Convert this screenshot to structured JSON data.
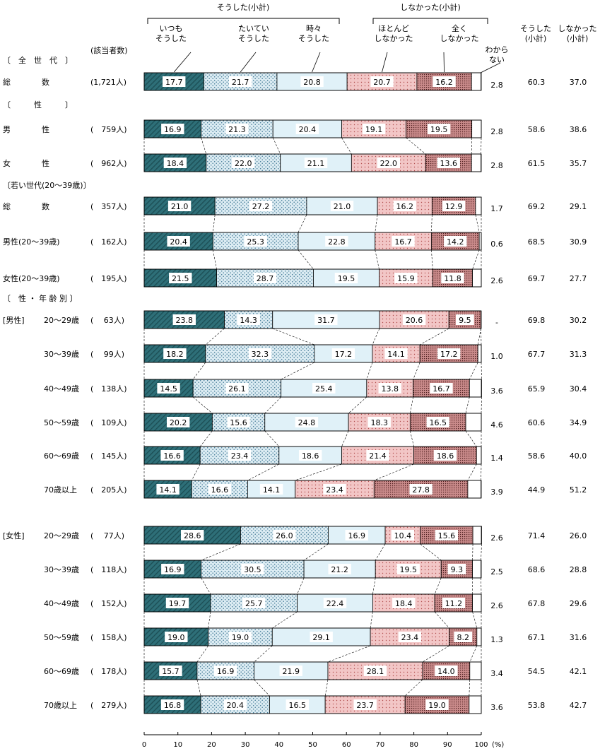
{
  "chart_data": {
    "type": "bar",
    "subtype": "stacked-horizontal-100",
    "unit_label": "(%)",
    "count_header": "(該当者数)",
    "group_headers": {
      "did": "そうした(小計)",
      "did_not": "しなかった(小計)"
    },
    "series": [
      {
        "name": "いつも\nそうした",
        "key": "always"
      },
      {
        "name": "たいてい\nそうした",
        "key": "usually"
      },
      {
        "name": "時々\nそうした",
        "key": "sometimes"
      },
      {
        "name": "ほとんど\nしなかった",
        "key": "rarely"
      },
      {
        "name": "全く\nしなかった",
        "key": "never"
      },
      {
        "name": "わから\nない",
        "key": "dontknow"
      }
    ],
    "subtotal_headers": [
      "そうした\n(小計)",
      "しなかった\n(小計)"
    ],
    "x_ticks": [
      "0",
      "10",
      "20",
      "30",
      "40",
      "50",
      "60",
      "70",
      "80",
      "90",
      "100"
    ],
    "xlim": [
      0,
      100
    ],
    "section_labels": [
      {
        "before": 0,
        "text": "〔　全　世　代　〕"
      },
      {
        "before": 1,
        "text": "〔　　　性　　　〕"
      },
      {
        "before": 3,
        "text": "〔若い世代(20〜39歳)〕"
      },
      {
        "before": 6,
        "text": "〔　性 ・ 年 齢 別 〕"
      }
    ],
    "rows": [
      {
        "label": "総　　　　数",
        "group": "",
        "count": "(1,721人)",
        "values": [
          17.7,
          21.7,
          20.8,
          20.7,
          16.2,
          2.8
        ],
        "did": "60.3",
        "did_not": "37.0"
      },
      {
        "label": "男　　　　性",
        "group": "",
        "count": "(　759人)",
        "values": [
          16.9,
          21.3,
          20.4,
          19.1,
          19.5,
          2.8
        ],
        "did": "58.6",
        "did_not": "38.6"
      },
      {
        "label": "女　　　　性",
        "group": "",
        "count": "(　962人)",
        "values": [
          18.4,
          22.0,
          21.1,
          22.0,
          13.6,
          2.8
        ],
        "did": "61.5",
        "did_not": "35.7"
      },
      {
        "label": "総　　　　数",
        "group": "",
        "count": "(　357人)",
        "values": [
          21.0,
          27.2,
          21.0,
          16.2,
          12.9,
          1.7
        ],
        "did": "69.2",
        "did_not": "29.1"
      },
      {
        "label": "男性(20〜39歳)",
        "group": "",
        "count": "(　162人)",
        "values": [
          20.4,
          25.3,
          22.8,
          16.7,
          14.2,
          0.6
        ],
        "did": "68.5",
        "did_not": "30.9"
      },
      {
        "label": "女性(20〜39歳)",
        "group": "",
        "count": "(　195人)",
        "values": [
          21.5,
          28.7,
          19.5,
          15.9,
          11.8,
          2.6
        ],
        "did": "69.7",
        "did_not": "27.7"
      },
      {
        "label": "20〜29歳",
        "group": "[男性]",
        "count": "(　 63人)",
        "values": [
          23.8,
          14.3,
          31.7,
          20.6,
          9.5,
          0
        ],
        "dk_text": "-",
        "did": "69.8",
        "did_not": "30.2"
      },
      {
        "label": "30〜39歳",
        "group": "",
        "count": "(　 99人)",
        "values": [
          18.2,
          32.3,
          17.2,
          14.1,
          17.2,
          1.0
        ],
        "did": "67.7",
        "did_not": "31.3"
      },
      {
        "label": "40〜49歳",
        "group": "",
        "count": "(　138人)",
        "values": [
          14.5,
          26.1,
          25.4,
          13.8,
          16.7,
          3.6
        ],
        "did": "65.9",
        "did_not": "30.4"
      },
      {
        "label": "50〜59歳",
        "group": "",
        "count": "(　109人)",
        "values": [
          20.2,
          15.6,
          24.8,
          18.3,
          16.5,
          4.6
        ],
        "did": "60.6",
        "did_not": "34.9"
      },
      {
        "label": "60〜69歳",
        "group": "",
        "count": "(　145人)",
        "values": [
          16.6,
          23.4,
          18.6,
          21.4,
          18.6,
          1.4
        ],
        "did": "58.6",
        "did_not": "40.0"
      },
      {
        "label": "70歳以上",
        "group": "",
        "count": "(　205人)",
        "values": [
          14.1,
          16.6,
          14.1,
          23.4,
          27.8,
          3.9
        ],
        "did": "44.9",
        "did_not": "51.2"
      },
      {
        "label": "20〜29歳",
        "group": "[女性]",
        "count": "(　 77人)",
        "values": [
          28.6,
          26.0,
          16.9,
          10.4,
          15.6,
          2.6
        ],
        "did": "71.4",
        "did_not": "26.0"
      },
      {
        "label": "30〜39歳",
        "group": "",
        "count": "(　118人)",
        "values": [
          16.9,
          30.5,
          21.2,
          19.5,
          9.3,
          2.5
        ],
        "did": "68.6",
        "did_not": "28.8"
      },
      {
        "label": "40〜49歳",
        "group": "",
        "count": "(　152人)",
        "values": [
          19.7,
          25.7,
          22.4,
          18.4,
          11.2,
          2.6
        ],
        "did": "67.8",
        "did_not": "29.6"
      },
      {
        "label": "50〜59歳",
        "group": "",
        "count": "(　158人)",
        "values": [
          19.0,
          19.0,
          29.1,
          23.4,
          8.2,
          1.3
        ],
        "did": "67.1",
        "did_not": "31.6"
      },
      {
        "label": "60〜69歳",
        "group": "",
        "count": "(　178人)",
        "values": [
          15.7,
          16.9,
          21.9,
          28.1,
          14.0,
          3.4
        ],
        "did": "54.5",
        "did_not": "42.1"
      },
      {
        "label": "70歳以上",
        "group": "",
        "count": "(　279人)",
        "values": [
          16.8,
          20.4,
          16.5,
          23.7,
          19.0,
          3.6
        ],
        "did": "53.8",
        "did_not": "42.7"
      }
    ]
  },
  "colors": {
    "always": "#2e6f78",
    "usually_bg": "#dcecf3",
    "usually_dot": "#4a7f9a",
    "sometimes": "#e0f1f8",
    "rarely_bg": "#f2c6c6",
    "rarely_dot": "#b25050",
    "never_bg": "#c98a8a",
    "never_dot": "#4d1f1f",
    "dontknow": "#ffffff",
    "stroke": "#000000",
    "text": "#000000"
  }
}
